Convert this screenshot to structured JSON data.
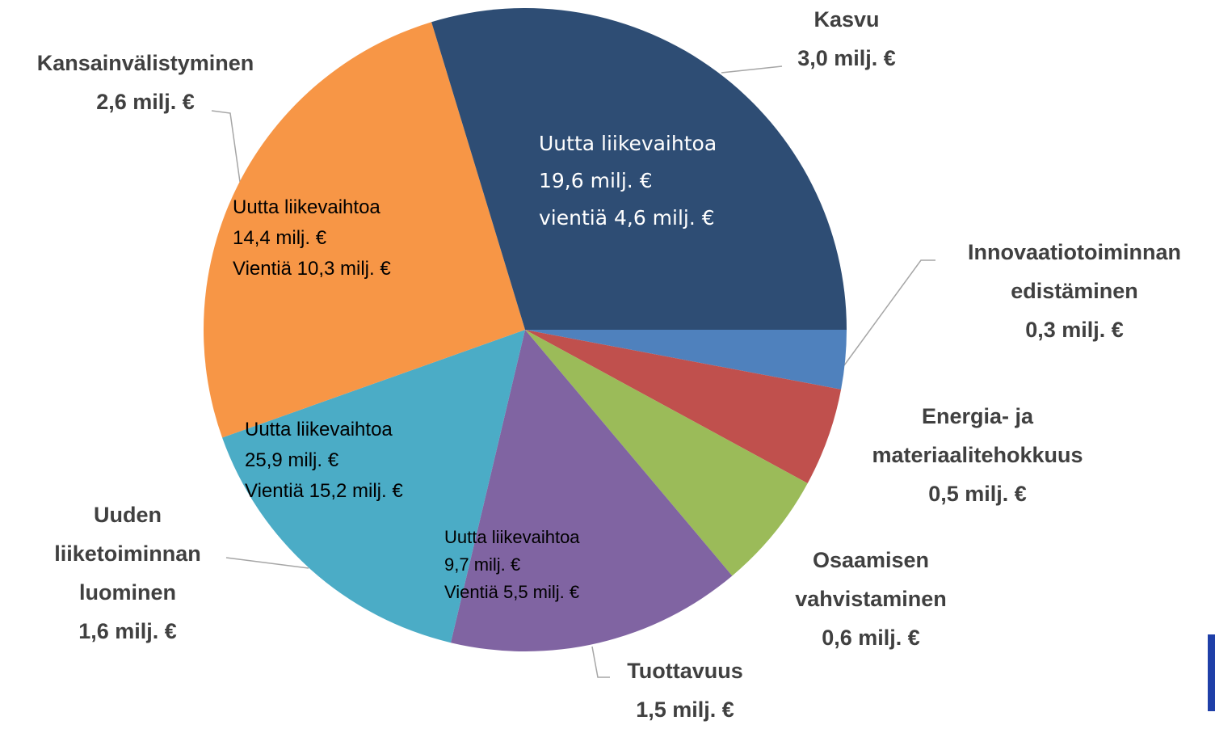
{
  "chart_data": {
    "type": "pie",
    "categories": [
      "Innovaatiotoiminnan\nedistäminen",
      "Energia- ja\nmateriaalitehokkuus",
      "Osaamisen\nvahvistaminen",
      "Tuottavuus",
      "Uuden\nliiketoiminnan\nluominen",
      "Kansainvälistyminen",
      "Kasvu"
    ],
    "values": [
      0.3,
      0.5,
      0.6,
      1.5,
      1.6,
      2.6,
      3.0
    ],
    "value_labels": [
      "0,3 milj. €",
      "0,5 milj. €",
      "0,6 milj. €",
      "1,5 milj. €",
      "1,6 milj. €",
      "2,6 milj. €",
      "3,0 milj. €"
    ],
    "colors": [
      "#4f81bd",
      "#c0504d",
      "#9bbb59",
      "#8064a2",
      "#4bacc6",
      "#f79646",
      "#2e4d74"
    ],
    "annotations": [
      "Uutta liikevaihtoa\n19,6 milj. €\nvientiä 4,6 milj. €",
      "Uutta liikevaihtoa\n14,4 milj. €\nVientiä 10,3 milj. €",
      "Uutta liikevaihtoa\n25,9 milj. €\nVientiä 15,2 milj. €",
      "Uutta liikevaihtoa\n9,7 milj. €\nVientiä 5,5 milj. €"
    ]
  }
}
